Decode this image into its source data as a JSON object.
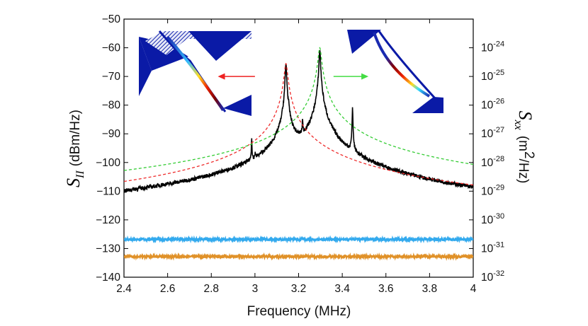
{
  "chart_data": {
    "type": "line",
    "xlabel": "Frequency (MHz)",
    "ylabel_left": {
      "symbol": "S",
      "subscript": "II",
      "units": "(dBm/Hz)"
    },
    "ylabel_right": {
      "symbol": "S",
      "subscript": "xx",
      "units_prefix": "(m",
      "units_exp": "2",
      "units_suffix": "/Hz)"
    },
    "xlim": [
      2.4,
      4.0
    ],
    "ylim": [
      -140,
      -50
    ],
    "x_ticks": [
      "2.4",
      "2.6",
      "2.8",
      "3",
      "3.2",
      "3.4",
      "3.6",
      "3.8",
      "4"
    ],
    "y_ticks": [
      "−50",
      "−60",
      "−70",
      "−80",
      "−90",
      "−100",
      "−110",
      "−120",
      "−130",
      "−140"
    ],
    "y_tick_values": [
      -50,
      -60,
      -70,
      -80,
      -90,
      -100,
      -110,
      -120,
      -130,
      -140
    ],
    "right_ticks": [
      {
        "label": "10",
        "exp": "-24",
        "y": -60
      },
      {
        "label": "10",
        "exp": "-25",
        "y": -70
      },
      {
        "label": "10",
        "exp": "-26",
        "y": -80
      },
      {
        "label": "10",
        "exp": "-27",
        "y": -90
      },
      {
        "label": "10",
        "exp": "-28",
        "y": -100
      },
      {
        "label": "10",
        "exp": "-29",
        "y": -110
      },
      {
        "label": "10",
        "exp": "-30",
        "y": -120
      },
      {
        "label": "10",
        "exp": "-31",
        "y": -130
      },
      {
        "label": "10",
        "exp": "-32",
        "y": -140
      }
    ],
    "series": [
      {
        "name": "measured spectrum",
        "color": "#000000",
        "style": "solid",
        "baseline": -125.8,
        "noise": 0.7,
        "peaks": [
          {
            "x": 3.142,
            "y": -65.5,
            "w": 0.0025
          },
          {
            "x": 3.297,
            "y": -60.5,
            "w": 0.0025
          },
          {
            "x": 3.447,
            "y": -80.5,
            "w": 0.0012
          },
          {
            "x": 3.154,
            "y": -85.0,
            "w": 0.0012
          },
          {
            "x": 3.218,
            "y": -86.0,
            "w": 0.0012
          },
          {
            "x": 2.985,
            "y": -92.0,
            "w": 0.0012
          },
          {
            "x": 3.001,
            "y": -100.5,
            "w": 0.0012
          },
          {
            "x": 3.078,
            "y": -105.0,
            "w": 0.0012
          },
          {
            "x": 3.6,
            "y": -108.0,
            "w": 0.0012
          },
          {
            "x": 2.833,
            "y": -111.0,
            "w": 0.0012
          },
          {
            "x": 3.372,
            "y": -111.0,
            "w": 0.0012
          },
          {
            "x": 3.407,
            "y": -111.5,
            "w": 0.0012
          },
          {
            "x": 3.028,
            "y": -112.0,
            "w": 0.0012
          },
          {
            "x": 3.049,
            "y": -114.5,
            "w": 0.0012
          },
          {
            "x": 3.465,
            "y": -115.0,
            "w": 0.0012
          },
          {
            "x": 2.863,
            "y": -116.0,
            "w": 0.0012
          },
          {
            "x": 3.76,
            "y": -116.0,
            "w": 0.0012
          },
          {
            "x": 2.633,
            "y": -116.5,
            "w": 0.0012
          },
          {
            "x": 3.49,
            "y": -117.0,
            "w": 0.0012
          },
          {
            "x": 2.88,
            "y": -118.0,
            "w": 0.0012
          },
          {
            "x": 2.575,
            "y": -118.5,
            "w": 0.0012
          },
          {
            "x": 3.855,
            "y": -118.0,
            "w": 0.0012
          },
          {
            "x": 2.795,
            "y": -119.5,
            "w": 0.0012
          },
          {
            "x": 3.11,
            "y": -118.0,
            "w": 0.0012
          },
          {
            "x": 2.473,
            "y": -120.5,
            "w": 0.0012
          },
          {
            "x": 2.445,
            "y": -121.0,
            "w": 0.0012
          },
          {
            "x": 2.52,
            "y": -121.5,
            "w": 0.0012
          },
          {
            "x": 2.71,
            "y": -121.0,
            "w": 0.0012
          },
          {
            "x": 3.7,
            "y": -120.5,
            "w": 0.0012
          },
          {
            "x": 3.64,
            "y": -121.5,
            "w": 0.0012
          },
          {
            "x": 3.96,
            "y": -122.0,
            "w": 0.0012
          }
        ]
      },
      {
        "name": "fit mode 1",
        "color": "#ee2a2a",
        "style": "dashed",
        "baseline": -126.0,
        "peaks": [
          {
            "x": 3.142,
            "y": -65.5,
            "w": 0.0065
          }
        ]
      },
      {
        "name": "fit mode 2",
        "color": "#33cc33",
        "style": "dashed",
        "baseline": -126.0,
        "peaks": [
          {
            "x": 3.297,
            "y": -60.0,
            "w": 0.0065
          }
        ]
      },
      {
        "name": "background",
        "color": "#33aaee",
        "style": "solid",
        "baseline": -126.8,
        "noise": 0.35,
        "peaks": []
      },
      {
        "name": "noise floor",
        "color": "#e09128",
        "style": "solid",
        "baseline": -132.8,
        "noise": 0.35,
        "peaks": []
      }
    ],
    "annotations": [
      {
        "type": "arrow",
        "color": "#ee2222",
        "direction": "left",
        "x_from": 3.0,
        "x_to": 2.83,
        "y": -70
      },
      {
        "type": "arrow",
        "color": "#44dd44",
        "direction": "right",
        "x_from": 3.36,
        "x_to": 3.52,
        "y": -70
      }
    ],
    "insets": [
      {
        "name": "mode shape left",
        "position": "top-left"
      },
      {
        "name": "mode shape right",
        "position": "top-right"
      }
    ],
    "grid": false
  }
}
